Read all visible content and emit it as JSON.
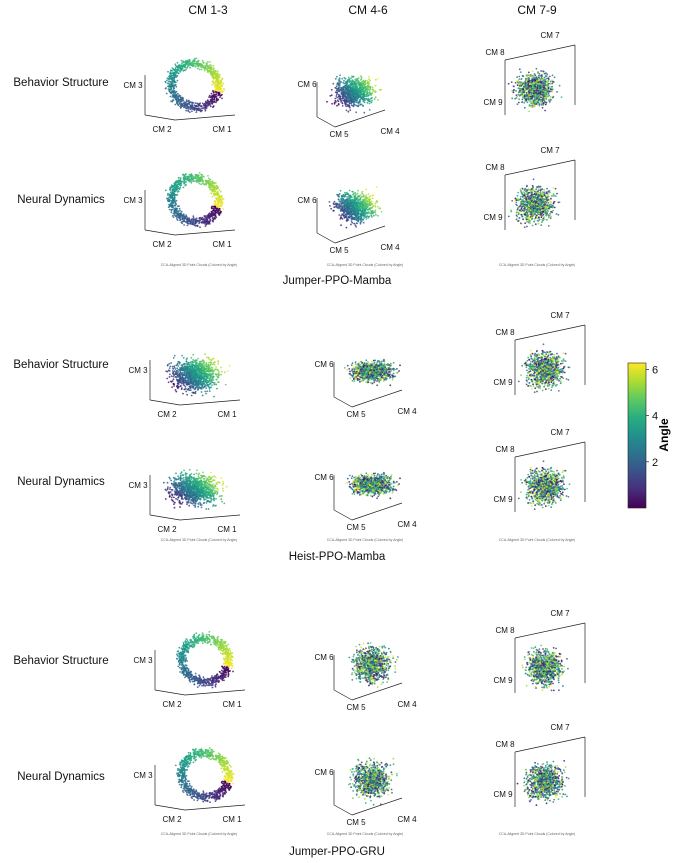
{
  "column_headers": [
    "CM 1-3",
    "CM 4-6",
    "CM 7-9"
  ],
  "row_labels": [
    "Behavior Structure",
    "Neural Dynamics"
  ],
  "caption_text": "CCA-Aligned 3D Point Clouds (Colored by Angle)",
  "colorbar": {
    "label": "Angle",
    "ticks": [
      2,
      4,
      6
    ],
    "range": [
      0,
      6.28
    ]
  },
  "chart_data": [
    {
      "type": "scatter",
      "title": "Jumper-PPO-Mamba",
      "subplots": [
        {
          "row": "Behavior Structure",
          "columns": "CM 1-3",
          "axes": [
            "CM 1",
            "CM 2",
            "CM 3"
          ]
        },
        {
          "row": "Behavior Structure",
          "columns": "CM 4-6",
          "axes": [
            "CM 4",
            "CM 5",
            "CM 6"
          ]
        },
        {
          "row": "Behavior Structure",
          "columns": "CM 7-9",
          "axes": [
            "CM 7",
            "CM 8",
            "CM 9"
          ]
        },
        {
          "row": "Neural Dynamics",
          "columns": "CM 1-3",
          "axes": [
            "CM 1",
            "CM 2",
            "CM 3"
          ]
        },
        {
          "row": "Neural Dynamics",
          "columns": "CM 4-6",
          "axes": [
            "CM 4",
            "CM 5",
            "CM 6"
          ]
        },
        {
          "row": "Neural Dynamics",
          "columns": "CM 7-9",
          "axes": [
            "CM 7",
            "CM 8",
            "CM 9"
          ]
        }
      ]
    },
    {
      "type": "scatter",
      "title": "Heist-PPO-Mamba",
      "subplots": [
        {
          "row": "Behavior Structure",
          "columns": "CM 1-3",
          "axes": [
            "CM 1",
            "CM 2",
            "CM 3"
          ]
        },
        {
          "row": "Behavior Structure",
          "columns": "CM 4-6",
          "axes": [
            "CM 4",
            "CM 5",
            "CM 6"
          ]
        },
        {
          "row": "Behavior Structure",
          "columns": "CM 7-9",
          "axes": [
            "CM 7",
            "CM 8",
            "CM 9"
          ]
        },
        {
          "row": "Neural Dynamics",
          "columns": "CM 1-3",
          "axes": [
            "CM 1",
            "CM 2",
            "CM 3"
          ]
        },
        {
          "row": "Neural Dynamics",
          "columns": "CM 4-6",
          "axes": [
            "CM 4",
            "CM 5",
            "CM 6"
          ]
        },
        {
          "row": "Neural Dynamics",
          "columns": "CM 7-9",
          "axes": [
            "CM 7",
            "CM 8",
            "CM 9"
          ]
        }
      ]
    },
    {
      "type": "scatter",
      "title": "Jumper-PPO-GRU",
      "subplots": [
        {
          "row": "Behavior Structure",
          "columns": "CM 1-3",
          "axes": [
            "CM 1",
            "CM 2",
            "CM 3"
          ]
        },
        {
          "row": "Behavior Structure",
          "columns": "CM 4-6",
          "axes": [
            "CM 4",
            "CM 5",
            "CM 6"
          ]
        },
        {
          "row": "Behavior Structure",
          "columns": "CM 7-9",
          "axes": [
            "CM 7",
            "CM 8",
            "CM 9"
          ]
        },
        {
          "row": "Neural Dynamics",
          "columns": "CM 1-3",
          "axes": [
            "CM 1",
            "CM 2",
            "CM 3"
          ]
        },
        {
          "row": "Neural Dynamics",
          "columns": "CM 4-6",
          "axes": [
            "CM 4",
            "CM 5",
            "CM 6"
          ]
        },
        {
          "row": "Neural Dynamics",
          "columns": "CM 7-9",
          "axes": [
            "CM 7",
            "CM 8",
            "CM 9"
          ]
        }
      ]
    }
  ]
}
